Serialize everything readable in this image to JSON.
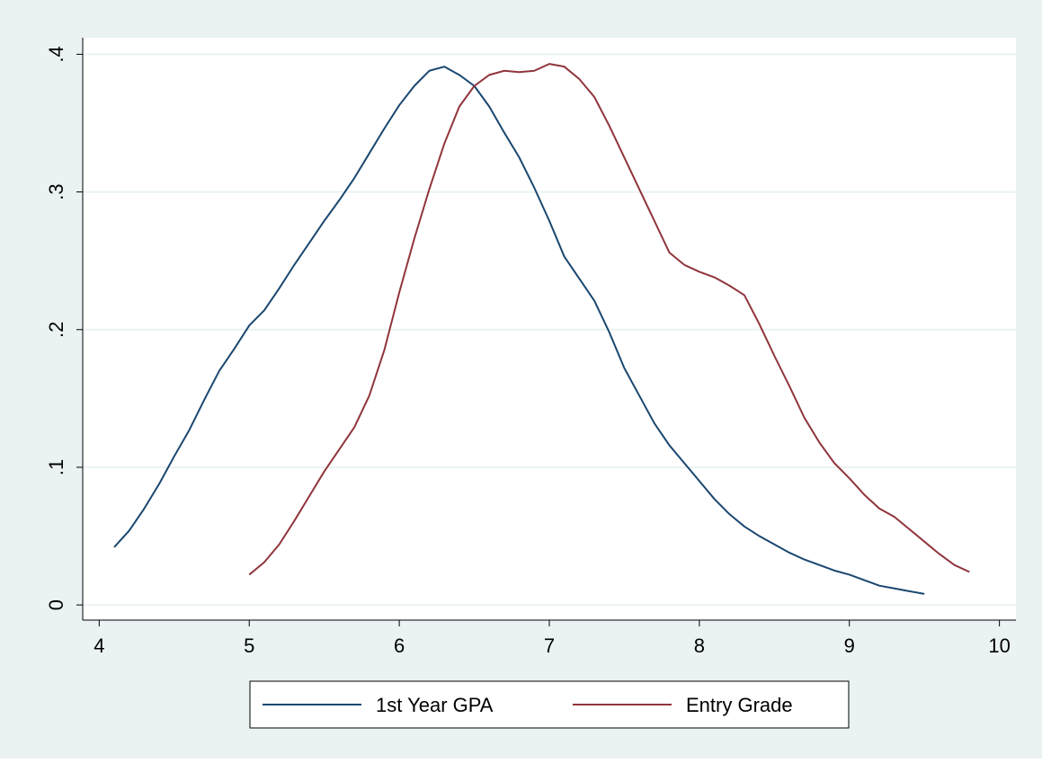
{
  "chart_data": {
    "type": "line",
    "xlim": [
      3.89,
      10.11
    ],
    "xticks": [
      4,
      5,
      6,
      7,
      8,
      9,
      10
    ],
    "ylim": [
      -0.011,
      0.412
    ],
    "yticks": [
      0,
      {
        "value": 0.1,
        "label": ".1"
      },
      {
        "value": 0.2,
        "label": ".2"
      },
      {
        "value": 0.3,
        "label": ".3"
      },
      {
        "value": 0.4,
        "label": ".4"
      }
    ],
    "grid": true,
    "series": [
      {
        "name": "1st Year GPA",
        "color": "#1a476f",
        "x": [
          4.1,
          4.2,
          4.3,
          4.4,
          4.5,
          4.6,
          4.7,
          4.8,
          4.9,
          5.0,
          5.1,
          5.2,
          5.3,
          5.4,
          5.5,
          5.6,
          5.7,
          5.8,
          5.9,
          6.0,
          6.1,
          6.2,
          6.3,
          6.4,
          6.5,
          6.6,
          6.7,
          6.8,
          6.9,
          7.0,
          7.1,
          7.2,
          7.3,
          7.4,
          7.5,
          7.6,
          7.7,
          7.8,
          7.9,
          8.0,
          8.1,
          8.2,
          8.3,
          8.4,
          8.5,
          8.6,
          8.7,
          8.8,
          8.9,
          9.0,
          9.1,
          9.2,
          9.3,
          9.4,
          9.5
        ],
        "values": [
          0.042,
          0.054,
          0.07,
          0.088,
          0.108,
          0.127,
          0.149,
          0.17,
          0.186,
          0.203,
          0.214,
          0.23,
          0.247,
          0.263,
          0.279,
          0.294,
          0.31,
          0.328,
          0.346,
          0.363,
          0.377,
          0.388,
          0.391,
          0.385,
          0.377,
          0.362,
          0.343,
          0.325,
          0.303,
          0.279,
          0.253,
          0.237,
          0.221,
          0.198,
          0.172,
          0.152,
          0.132,
          0.116,
          0.103,
          0.09,
          0.077,
          0.066,
          0.057,
          0.05,
          0.044,
          0.038,
          0.033,
          0.029,
          0.025,
          0.022,
          0.018,
          0.014,
          0.012,
          0.01,
          0.008
        ]
      },
      {
        "name": "Entry Grade",
        "color": "#90353b",
        "x": [
          5.0,
          5.1,
          5.2,
          5.3,
          5.4,
          5.5,
          5.6,
          5.7,
          5.8,
          5.9,
          6.0,
          6.1,
          6.2,
          6.3,
          6.4,
          6.5,
          6.6,
          6.7,
          6.8,
          6.9,
          7.0,
          7.1,
          7.2,
          7.3,
          7.4,
          7.5,
          7.6,
          7.7,
          7.8,
          7.9,
          8.0,
          8.1,
          8.2,
          8.3,
          8.4,
          8.5,
          8.6,
          8.7,
          8.8,
          8.9,
          9.0,
          9.1,
          9.2,
          9.3,
          9.4,
          9.5,
          9.6,
          9.7,
          9.8
        ],
        "values": [
          0.022,
          0.031,
          0.044,
          0.061,
          0.079,
          0.097,
          0.113,
          0.129,
          0.152,
          0.185,
          0.227,
          0.266,
          0.302,
          0.335,
          0.362,
          0.377,
          0.385,
          0.388,
          0.387,
          0.388,
          0.393,
          0.391,
          0.382,
          0.369,
          0.348,
          0.325,
          0.302,
          0.279,
          0.256,
          0.247,
          0.242,
          0.238,
          0.232,
          0.225,
          0.204,
          0.181,
          0.159,
          0.136,
          0.118,
          0.103,
          0.092,
          0.08,
          0.07,
          0.064,
          0.055,
          0.046,
          0.037,
          0.029,
          0.024
        ]
      }
    ]
  }
}
